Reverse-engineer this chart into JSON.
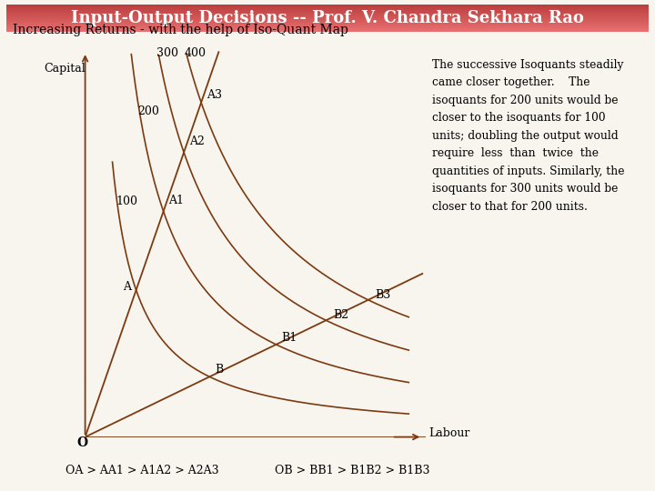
{
  "title": "Input-Output Decisions -- Prof. V. Chandra Sekhara Rao",
  "subtitle": "Increasing Returns - with the help of Iso-Quant Map",
  "title_bg_top": "#e87070",
  "title_bg_bot": "#c04040",
  "title_text_color": "#ffffff",
  "bg_color": "#f8f4ee",
  "line_color": "#7B3A10",
  "text_color": "#000000",
  "xlabel": "Labour",
  "ylabel": "Capital",
  "bottom_text1": "OA > AA1 > A1A2 > A2A3",
  "bottom_text2": "OB > BB1 > B1B2 > B1B3",
  "ann_line1": "The successive Isoquants steadily",
  "ann_line2": "came closer together.    The",
  "ann_line3": "isoquants for 200 units would be",
  "ann_line4": "closer to the isoquants for 100",
  "ann_line5": "units; doubling the output would",
  "ann_line6": "require  less  than  twice  the",
  "ann_line7": "quantities of inputs. Similarly, the",
  "ann_line8": "isoquants for 300 units would be",
  "ann_line9": "closer to that for 200 units.",
  "slope_OA": 2.5,
  "slope_OB": 0.42,
  "k_values": [
    5.6,
    13.2,
    21.0,
    29.0
  ],
  "iso_labels": [
    "100",
    "200",
    "300",
    "400"
  ]
}
